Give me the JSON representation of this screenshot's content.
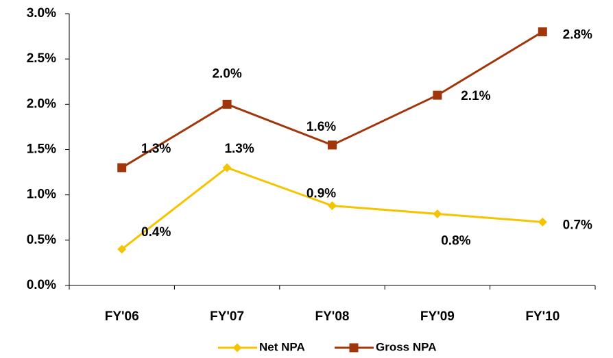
{
  "chart_data": {
    "type": "line",
    "categories": [
      "FY'06",
      "FY'07",
      "FY'08",
      "FY'09",
      "FY'10"
    ],
    "series": [
      {
        "name": "Net NPA",
        "color": "#F5C400",
        "marker": "diamond",
        "values": [
          0.4,
          1.3,
          0.88,
          0.79,
          0.7
        ],
        "value_labels": [
          "0.4%",
          "1.3%",
          "0.9%",
          "0.8%",
          "0.7%"
        ]
      },
      {
        "name": "Gross NPA",
        "color": "#A0360A",
        "marker": "square",
        "values": [
          1.3,
          2.0,
          1.55,
          2.1,
          2.8
        ],
        "value_labels": [
          "1.3%",
          "2.0%",
          "1.6%",
          "2.1%",
          "2.8%"
        ]
      }
    ],
    "ylim": [
      0,
      3.0
    ],
    "yticks": [
      {
        "value": 0,
        "label": "0.0%"
      },
      {
        "value": 0.5,
        "label": "0.5%"
      },
      {
        "value": 1.0,
        "label": "1.0%"
      },
      {
        "value": 1.5,
        "label": "1.5%"
      },
      {
        "value": 2.0,
        "label": "2.0%"
      },
      {
        "value": 2.5,
        "label": "2.5%"
      },
      {
        "value": 3.0,
        "label": "3.0%"
      }
    ],
    "legend": "bottom"
  }
}
